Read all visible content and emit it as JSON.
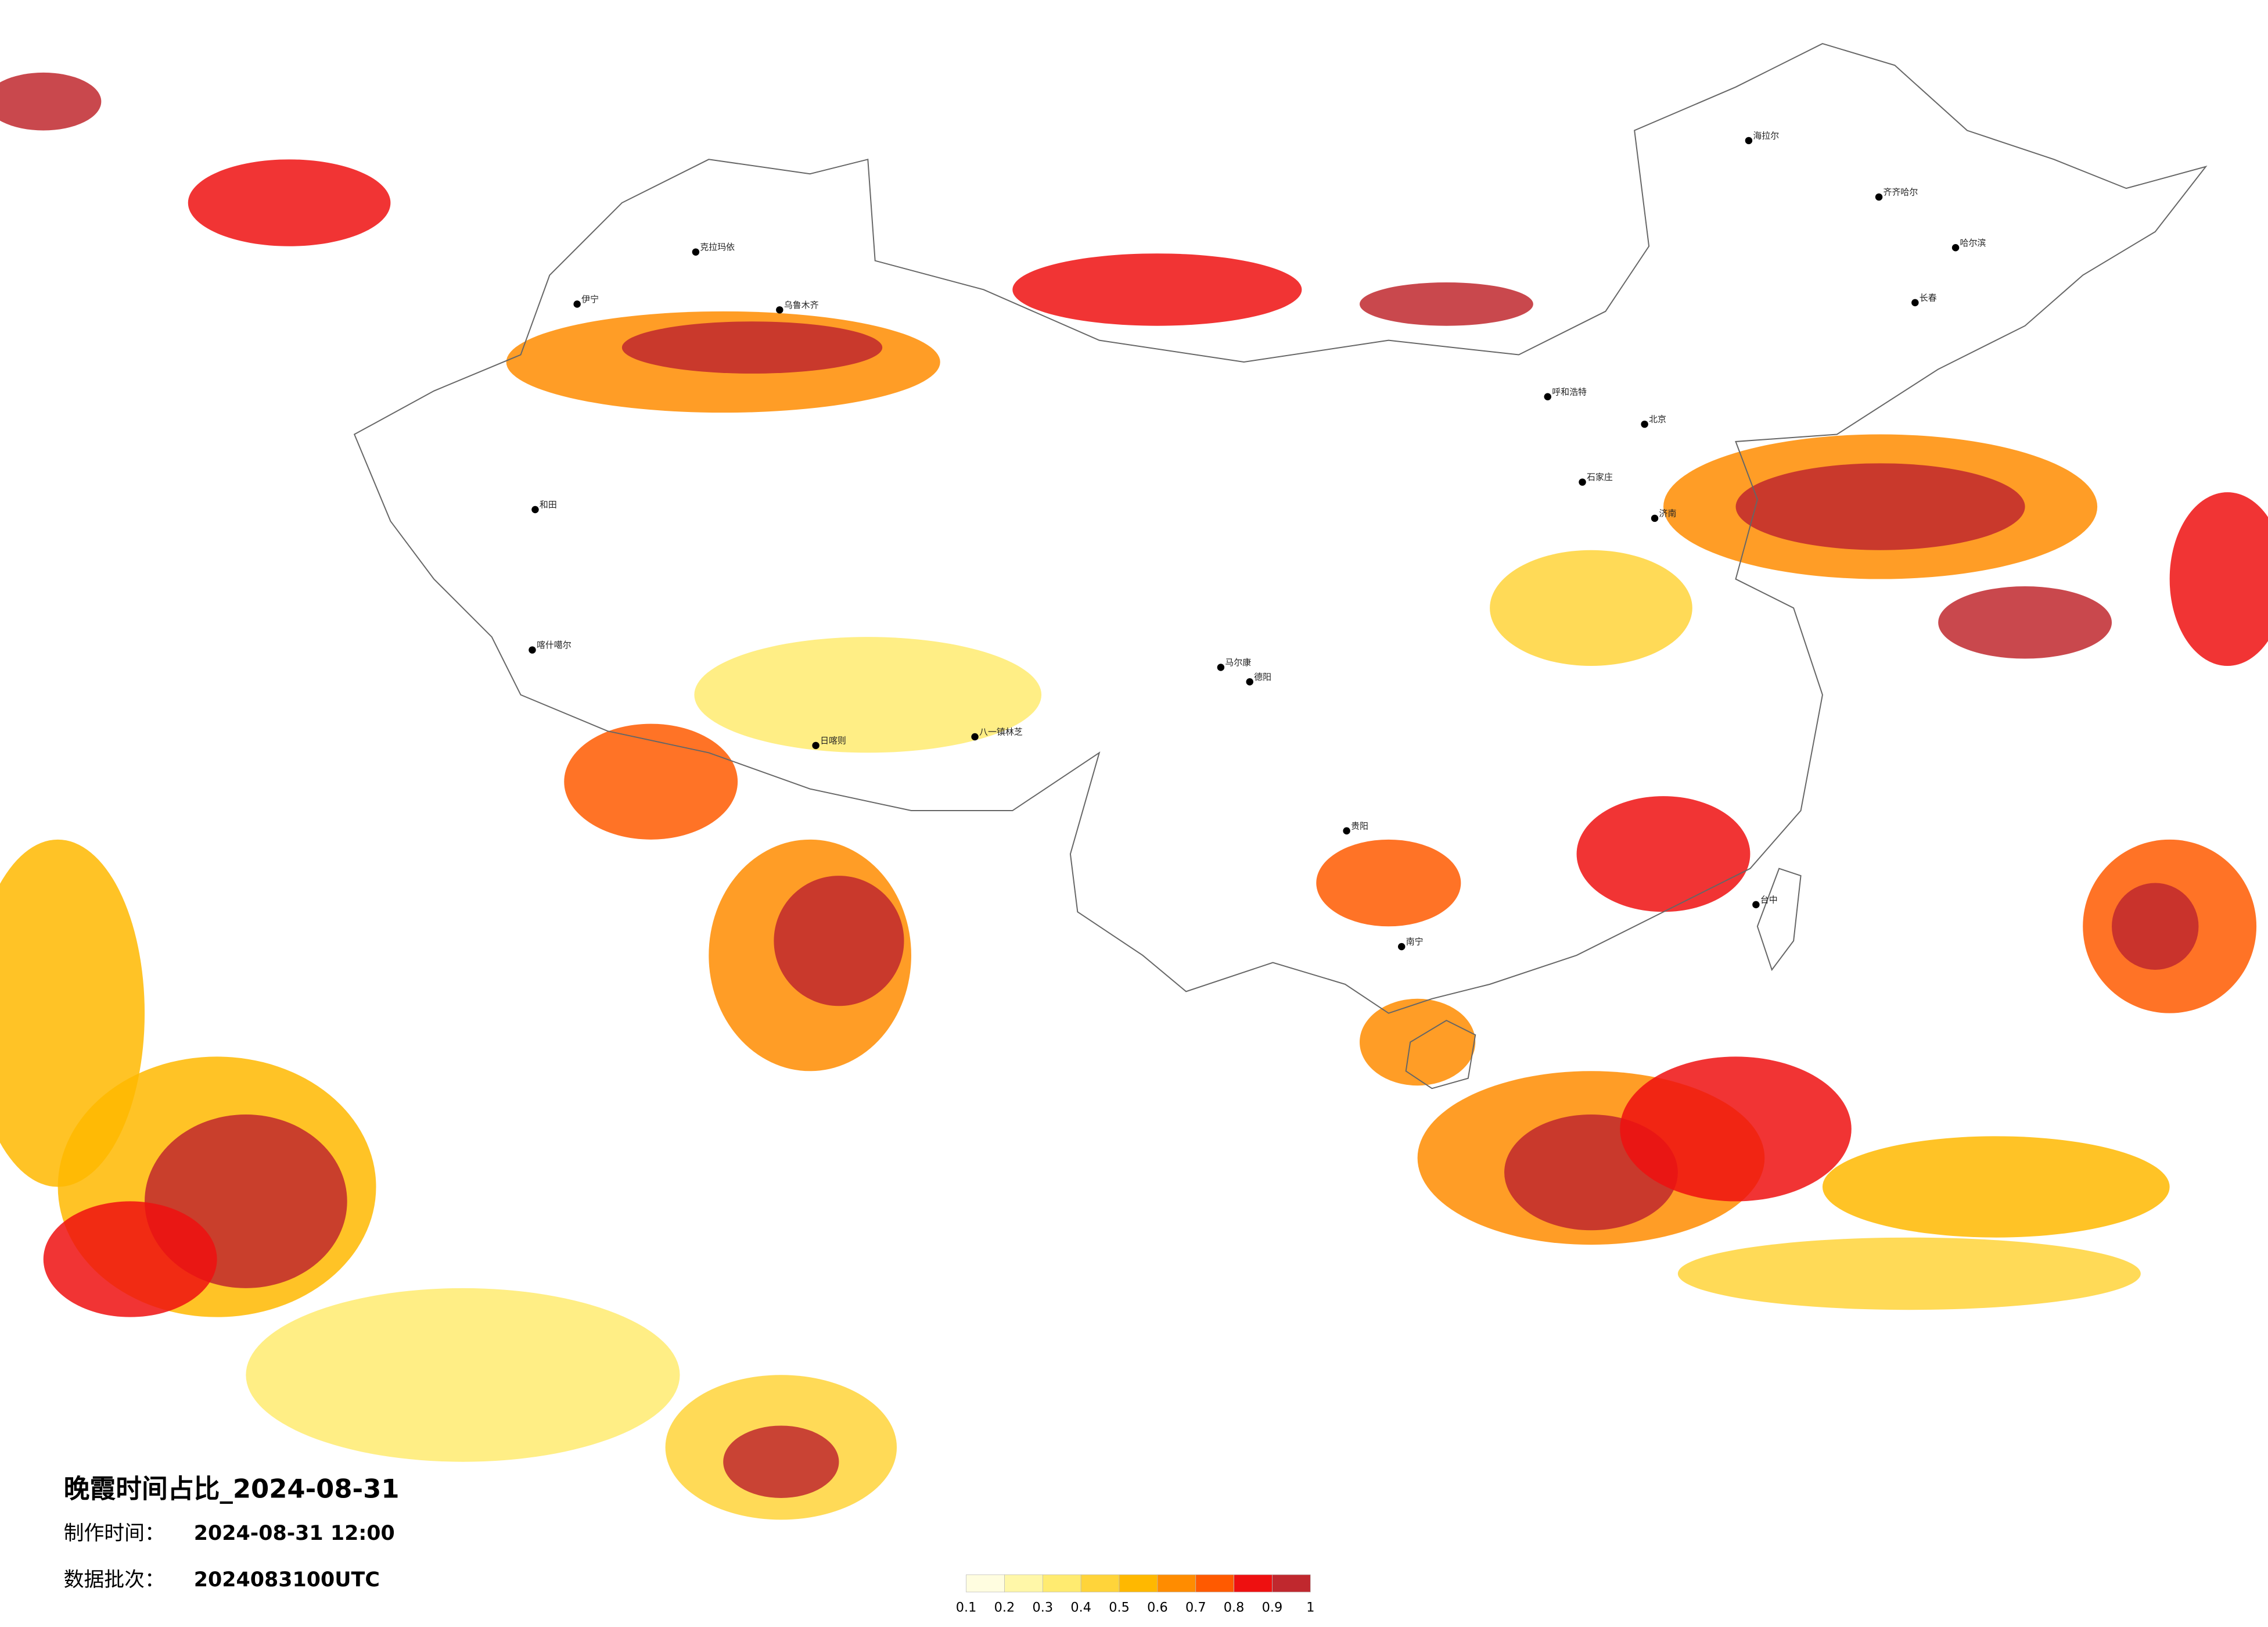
{
  "title": "晚霞时间占比_2024-08-31",
  "production_time": {
    "label": "制作时间：",
    "value": "2024-08-31 12:00"
  },
  "batch": {
    "label": "数据批次：",
    "value": "2024083100UTC"
  },
  "colorbar": {
    "colors": [
      "#fffde0",
      "#fff7a8",
      "#ffeb70",
      "#ffd43a",
      "#ffb800",
      "#ff8c00",
      "#ff5a00",
      "#ee1010",
      "#c0282e"
    ],
    "ticks": [
      "0.1",
      "0.2",
      "0.3",
      "0.4",
      "0.5",
      "0.6",
      "0.7",
      "0.8",
      "0.9",
      "1"
    ]
  },
  "cities": [
    "克拉玛依",
    "乌鲁木齐",
    "伊宁",
    "和田",
    "喀什噶尔",
    "日喀则",
    "八一镇林芝",
    "海拉尔",
    "齐齐哈尔",
    "哈尔滨",
    "长春",
    "北京",
    "呼和浩特",
    "德阳",
    "贵阳",
    "南宁",
    "石家庄",
    "济南",
    "台中",
    "马尔康"
  ]
}
